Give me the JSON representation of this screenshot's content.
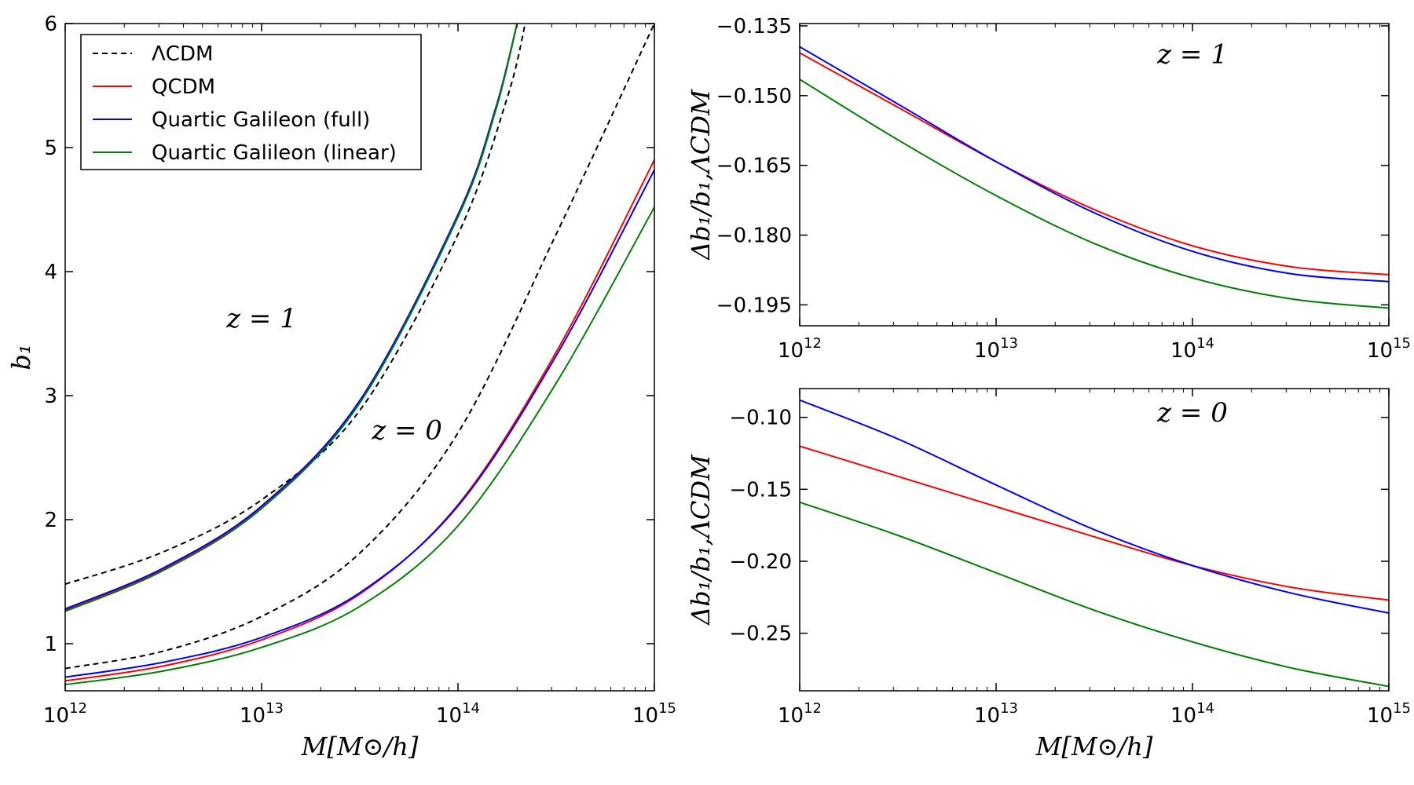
{
  "legend": {
    "placement": "upper-left",
    "entries": [
      {
        "label": "ΛCDM",
        "color": "#000000",
        "dash": true
      },
      {
        "label": "QCDM",
        "color": "#ff0000",
        "dash": false
      },
      {
        "label": "Quartic Galileon (full)",
        "color": "#0000ff",
        "dash": false
      },
      {
        "label": "Quartic Galileon (linear)",
        "color": "#008000",
        "dash": false
      }
    ]
  },
  "chart_data": [
    {
      "type": "line",
      "panel": "left",
      "xscale": "log",
      "xlim": [
        1000000000000.0,
        1000000000000000.0
      ],
      "ylim": [
        0.62,
        6
      ],
      "xlabel": "M[M⊙/h]",
      "ylabel": "b₁",
      "xticks": [
        1000000000000.0,
        10000000000000.0,
        100000000000000.0,
        1000000000000000.0
      ],
      "xtick_labels": [
        {
          "base": "10",
          "exp": "12"
        },
        {
          "base": "10",
          "exp": "13"
        },
        {
          "base": "10",
          "exp": "14"
        },
        {
          "base": "10",
          "exp": "15"
        }
      ],
      "yticks": [
        1,
        2,
        3,
        4,
        5,
        6
      ],
      "ytick_labels": [
        "1",
        "2",
        "3",
        "4",
        "5",
        "6"
      ],
      "annotations": [
        {
          "text": "z = 1",
          "x": 10000000000000.0,
          "y": 3.55
        },
        {
          "text": "z = 0",
          "x": 55000000000000.0,
          "y": 2.65
        }
      ],
      "series": [
        {
          "name": "ΛCDM",
          "redshift": "z=1",
          "color": "#000000",
          "dash": true,
          "x": [
            1000000000000.0,
            3160000000000.0,
            10000000000000.0,
            31600000000000.0,
            100000000000000.0,
            178000000000000.0,
            220000000000000.0
          ],
          "y": [
            1.48,
            1.74,
            2.16,
            2.88,
            4.3,
            5.4,
            6.0
          ]
        },
        {
          "name": "QCDM",
          "redshift": "z=1",
          "color": "#ff0000",
          "dash": false,
          "x": [
            1000000000000.0,
            3160000000000.0,
            10000000000000.0,
            31600000000000.0,
            100000000000000.0,
            155000000000000.0,
            200000000000000.0
          ],
          "y": [
            1.27,
            1.6,
            2.1,
            2.95,
            4.45,
            5.3,
            6.0
          ]
        },
        {
          "name": "Quartic Galileon (full)",
          "redshift": "z=1",
          "color": "#0000ff",
          "dash": false,
          "x": [
            1000000000000.0,
            3160000000000.0,
            10000000000000.0,
            31600000000000.0,
            100000000000000.0,
            155000000000000.0,
            200000000000000.0
          ],
          "y": [
            1.28,
            1.61,
            2.11,
            2.96,
            4.46,
            5.31,
            6.0
          ]
        },
        {
          "name": "Quartic Galileon (linear)",
          "redshift": "z=1",
          "color": "#008000",
          "dash": false,
          "x": [
            1000000000000.0,
            3160000000000.0,
            10000000000000.0,
            31600000000000.0,
            100000000000000.0,
            155000000000000.0,
            200000000000000.0
          ],
          "y": [
            1.26,
            1.59,
            2.09,
            2.94,
            4.44,
            5.29,
            6.0
          ]
        },
        {
          "name": "ΛCDM",
          "redshift": "z=0",
          "color": "#000000",
          "dash": true,
          "x": [
            1000000000000.0,
            3160000000000.0,
            10000000000000.0,
            31600000000000.0,
            100000000000000.0,
            316000000000000.0,
            1000000000000000.0
          ],
          "y": [
            0.8,
            0.94,
            1.22,
            1.73,
            2.7,
            4.3,
            6.0
          ]
        },
        {
          "name": "QCDM",
          "redshift": "z=0",
          "color": "#ff0000",
          "dash": false,
          "x": [
            1000000000000.0,
            3160000000000.0,
            10000000000000.0,
            31600000000000.0,
            100000000000000.0,
            316000000000000.0,
            1000000000000000.0
          ],
          "y": [
            0.7,
            0.82,
            1.03,
            1.4,
            2.12,
            3.35,
            4.9
          ]
        },
        {
          "name": "Quartic Galileon (full)",
          "redshift": "z=0",
          "color": "#0000ff",
          "dash": false,
          "x": [
            1000000000000.0,
            3160000000000.0,
            10000000000000.0,
            31600000000000.0,
            100000000000000.0,
            316000000000000.0,
            1000000000000000.0
          ],
          "y": [
            0.73,
            0.85,
            1.05,
            1.41,
            2.11,
            3.32,
            4.82
          ]
        },
        {
          "name": "Quartic Galileon (linear)",
          "redshift": "z=0",
          "color": "#008000",
          "dash": false,
          "x": [
            1000000000000.0,
            3160000000000.0,
            10000000000000.0,
            31600000000000.0,
            100000000000000.0,
            316000000000000.0,
            1000000000000000.0
          ],
          "y": [
            0.67,
            0.78,
            0.97,
            1.3,
            1.95,
            3.1,
            4.52
          ]
        }
      ]
    },
    {
      "type": "line",
      "panel": "top-right",
      "xscale": "log",
      "xlim": [
        1000000000000.0,
        1000000000000000.0
      ],
      "ylim": [
        -0.1995,
        -0.1345
      ],
      "xlabel": "",
      "ylabel": "Δb₁/b₁,ΛCDM",
      "xticks": [
        1000000000000.0,
        10000000000000.0,
        100000000000000.0,
        1000000000000000.0
      ],
      "xtick_labels": [
        {
          "base": "10",
          "exp": "12"
        },
        {
          "base": "10",
          "exp": "13"
        },
        {
          "base": "10",
          "exp": "14"
        },
        {
          "base": "10",
          "exp": "15"
        }
      ],
      "yticks": [
        -0.135,
        -0.15,
        -0.165,
        -0.18,
        -0.195
      ],
      "ytick_labels": [
        "−0.135",
        "−0.150",
        "−0.165",
        "−0.180",
        "−0.195"
      ],
      "annotations": [
        {
          "text": "z = 1",
          "x": 100000000000000.0,
          "y": -0.143
        }
      ],
      "series": [
        {
          "name": "QCDM",
          "color": "#ff0000",
          "x": [
            1000000000000.0,
            3160000000000.0,
            10000000000000.0,
            31600000000000.0,
            100000000000000.0,
            316000000000000.0,
            1000000000000000.0
          ],
          "y": [
            -0.1408,
            -0.1525,
            -0.1642,
            -0.1745,
            -0.1823,
            -0.1868,
            -0.1885
          ]
        },
        {
          "name": "Quartic Galileon (full)",
          "color": "#0000ff",
          "x": [
            1000000000000.0,
            3160000000000.0,
            10000000000000.0,
            31600000000000.0,
            100000000000000.0,
            316000000000000.0,
            1000000000000000.0
          ],
          "y": [
            -0.1395,
            -0.1518,
            -0.1642,
            -0.1752,
            -0.1835,
            -0.1883,
            -0.19
          ]
        },
        {
          "name": "Quartic Galileon (linear)",
          "color": "#008000",
          "x": [
            1000000000000.0,
            3160000000000.0,
            10000000000000.0,
            31600000000000.0,
            100000000000000.0,
            316000000000000.0,
            1000000000000000.0
          ],
          "y": [
            -0.1465,
            -0.1595,
            -0.1715,
            -0.1818,
            -0.1892,
            -0.1937,
            -0.1957
          ]
        }
      ]
    },
    {
      "type": "line",
      "panel": "bottom-right",
      "xscale": "log",
      "xlim": [
        1000000000000.0,
        1000000000000000.0
      ],
      "ylim": [
        -0.29,
        -0.08
      ],
      "xlabel": "M[M⊙/h]",
      "ylabel": "Δb₁/b₁,ΛCDM",
      "xticks": [
        1000000000000.0,
        10000000000000.0,
        100000000000000.0,
        1000000000000000.0
      ],
      "xtick_labels": [
        {
          "base": "10",
          "exp": "12"
        },
        {
          "base": "10",
          "exp": "13"
        },
        {
          "base": "10",
          "exp": "14"
        },
        {
          "base": "10",
          "exp": "15"
        }
      ],
      "yticks": [
        -0.1,
        -0.15,
        -0.2,
        -0.25
      ],
      "ytick_labels": [
        "−0.10",
        "−0.15",
        "−0.20",
        "−0.25"
      ],
      "annotations": [
        {
          "text": "z = 0",
          "x": 100000000000000.0,
          "y": -0.103
        }
      ],
      "series": [
        {
          "name": "QCDM",
          "color": "#ff0000",
          "x": [
            1000000000000.0,
            3160000000000.0,
            10000000000000.0,
            31600000000000.0,
            100000000000000.0,
            316000000000000.0,
            1000000000000000.0
          ],
          "y": [
            -0.12,
            -0.141,
            -0.162,
            -0.183,
            -0.203,
            -0.218,
            -0.227
          ]
        },
        {
          "name": "Quartic Galileon (full)",
          "color": "#0000ff",
          "x": [
            1000000000000.0,
            3160000000000.0,
            10000000000000.0,
            31600000000000.0,
            100000000000000.0,
            316000000000000.0,
            1000000000000000.0
          ],
          "y": [
            -0.088,
            -0.115,
            -0.147,
            -0.178,
            -0.203,
            -0.222,
            -0.236
          ]
        },
        {
          "name": "Quartic Galileon (linear)",
          "color": "#008000",
          "x": [
            1000000000000.0,
            3160000000000.0,
            10000000000000.0,
            31600000000000.0,
            100000000000000.0,
            316000000000000.0,
            1000000000000000.0
          ],
          "y": [
            -0.159,
            -0.182,
            -0.208,
            -0.234,
            -0.256,
            -0.274,
            -0.287
          ]
        }
      ]
    }
  ]
}
